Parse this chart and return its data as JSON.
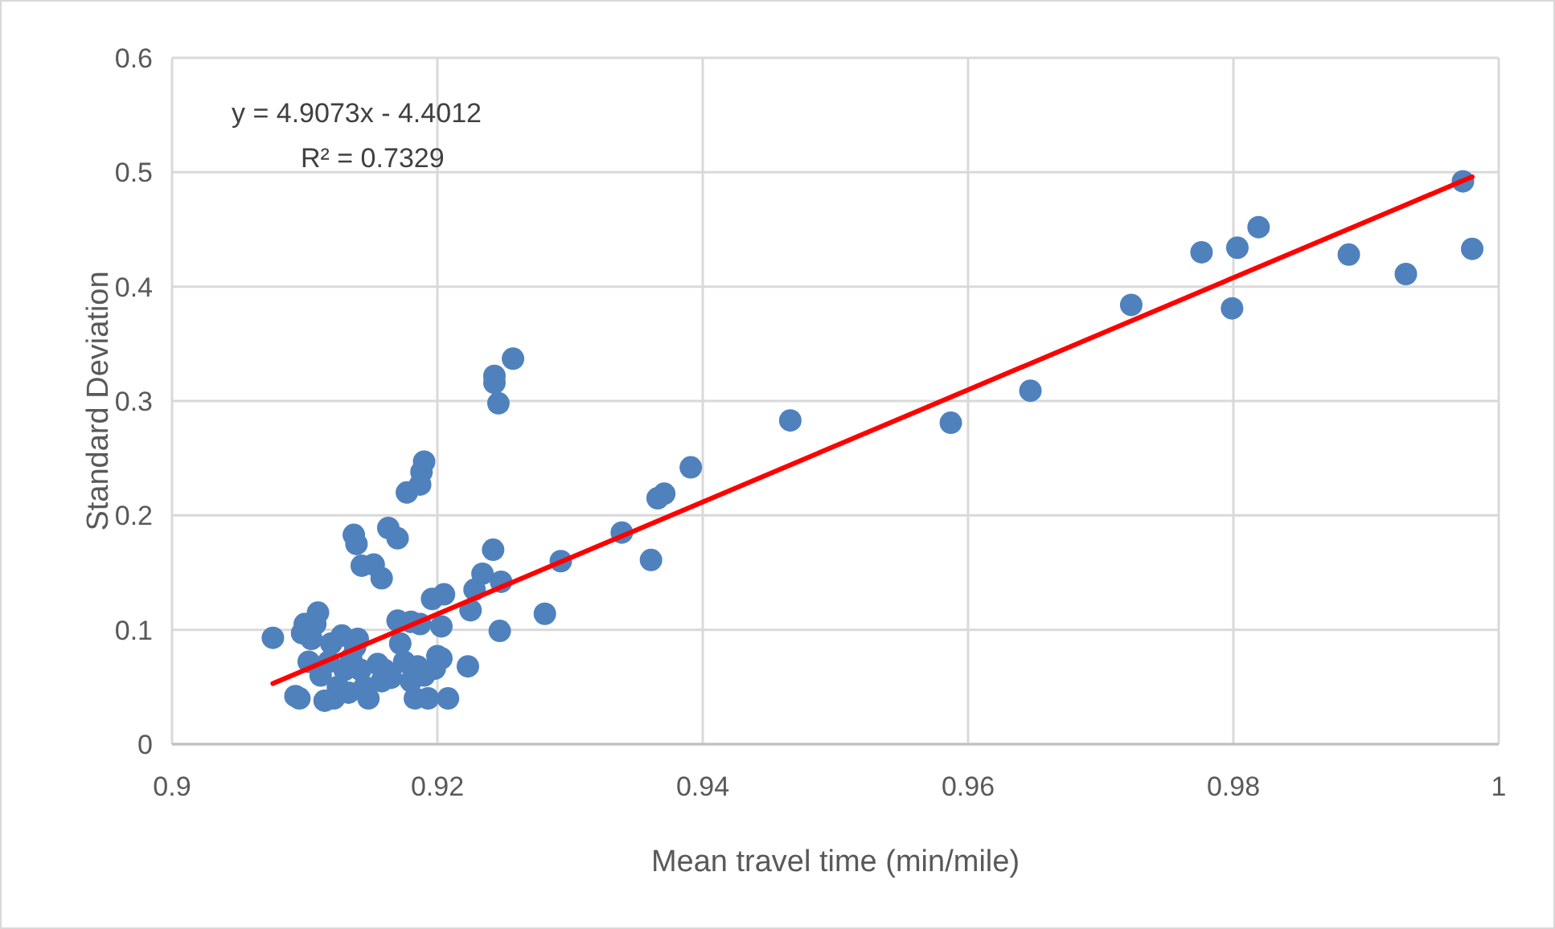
{
  "chart_data": {
    "type": "scatter",
    "xlabel": "Mean travel time (min/mile)",
    "ylabel": "Standard Deviation",
    "annotations": [
      "y = 4.9073x - 4.4012",
      "R² = 0.7329"
    ],
    "xlim": [
      0.9,
      1
    ],
    "xticks": [
      0.9,
      0.92,
      0.94,
      0.96,
      0.98,
      1
    ],
    "ylim": [
      0,
      0.6
    ],
    "yticks": [
      0,
      0.1,
      0.2,
      0.3,
      0.4,
      0.5,
      0.6
    ],
    "grid": true,
    "series": [
      {
        "color": "#4f81bd",
        "marker": "circle",
        "x": [
          0.9973,
          0.998,
          0.993,
          0.9887,
          0.9819,
          0.9803,
          0.9799,
          0.9776,
          0.9723,
          0.9647,
          0.9587,
          0.9466,
          0.9391,
          0.9371,
          0.9366,
          0.9361,
          0.9339,
          0.9293,
          0.9281,
          0.9257,
          0.9243,
          0.9243,
          0.9246,
          0.9248,
          0.9247,
          0.9242,
          0.9234,
          0.9228,
          0.9225,
          0.9223,
          0.9205,
          0.9203,
          0.9208,
          0.919,
          0.9188,
          0.9187,
          0.9177,
          0.917,
          0.9163,
          0.9158,
          0.9152,
          0.9143,
          0.9137,
          0.9139,
          0.917,
          0.918,
          0.9187,
          0.9196,
          0.92,
          0.9198,
          0.9193,
          0.9183,
          0.918,
          0.9185,
          0.9172,
          0.9175,
          0.9165,
          0.916,
          0.9155,
          0.9148,
          0.9145,
          0.914,
          0.9138,
          0.9135,
          0.913,
          0.9128,
          0.9125,
          0.9122,
          0.9118,
          0.9115,
          0.9112,
          0.911,
          0.9108,
          0.9105,
          0.9103,
          0.91,
          0.9098,
          0.9096,
          0.9093,
          0.9076,
          0.912,
          0.9133,
          0.9142,
          0.9158,
          0.919,
          0.9203
        ],
        "values": [
          0.492,
          0.433,
          0.411,
          0.428,
          0.452,
          0.434,
          0.381,
          0.43,
          0.384,
          0.309,
          0.281,
          0.283,
          0.242,
          0.219,
          0.215,
          0.161,
          0.185,
          0.16,
          0.114,
          0.337,
          0.322,
          0.316,
          0.298,
          0.142,
          0.099,
          0.17,
          0.149,
          0.135,
          0.117,
          0.068,
          0.131,
          0.103,
          0.04,
          0.247,
          0.238,
          0.227,
          0.22,
          0.18,
          0.189,
          0.145,
          0.157,
          0.156,
          0.183,
          0.175,
          0.108,
          0.107,
          0.105,
          0.127,
          0.077,
          0.066,
          0.04,
          0.04,
          0.055,
          0.068,
          0.088,
          0.072,
          0.058,
          0.065,
          0.07,
          0.04,
          0.05,
          0.092,
          0.085,
          0.075,
          0.065,
          0.095,
          0.05,
          0.04,
          0.072,
          0.038,
          0.06,
          0.115,
          0.105,
          0.092,
          0.072,
          0.105,
          0.097,
          0.04,
          0.042,
          0.093,
          0.088,
          0.045,
          0.065,
          0.055,
          0.06,
          0.075
        ]
      },
      {
        "type": "line",
        "color": "#ff0000",
        "marker": "none",
        "x": [
          0.9076,
          0.998
        ],
        "values": [
          0.053,
          0.496
        ]
      }
    ]
  }
}
